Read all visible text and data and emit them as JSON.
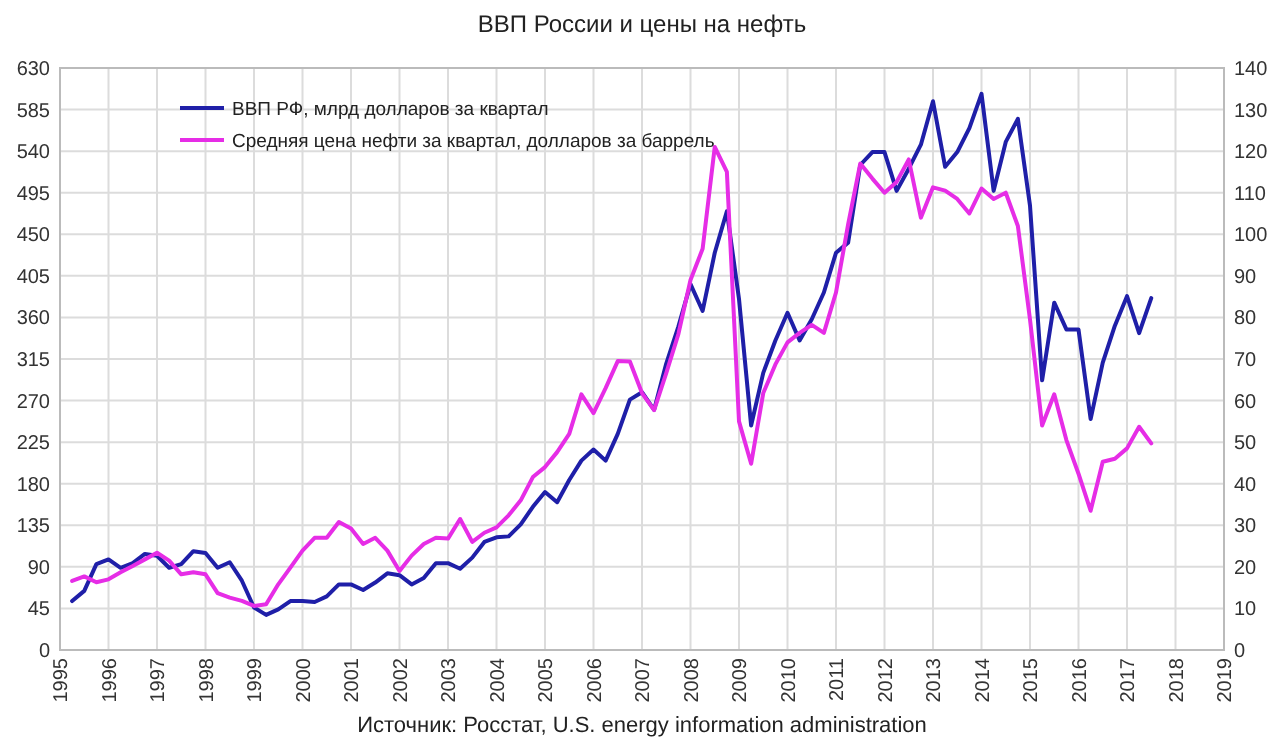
{
  "chart_data": {
    "type": "line",
    "title": "ВВП России и цены на нефть",
    "x": [
      1995.25,
      1995.5,
      1995.75,
      1996,
      1996.25,
      1996.5,
      1996.75,
      1997,
      1997.25,
      1997.5,
      1997.75,
      1998,
      1998.25,
      1998.5,
      1998.75,
      1999,
      1999.25,
      1999.5,
      1999.75,
      2000,
      2000.25,
      2000.5,
      2000.75,
      2001,
      2001.25,
      2001.5,
      2001.75,
      2002,
      2002.25,
      2002.5,
      2002.75,
      2003,
      2003.25,
      2003.5,
      2003.75,
      2004,
      2004.25,
      2004.5,
      2004.75,
      2005,
      2005.25,
      2005.5,
      2005.75,
      2006,
      2006.25,
      2006.5,
      2006.75,
      2007,
      2007.25,
      2007.5,
      2007.75,
      2008,
      2008.25,
      2008.5,
      2008.75,
      2009,
      2009.25,
      2009.5,
      2009.75,
      2010,
      2010.25,
      2010.5,
      2010.75,
      2011,
      2011.25,
      2011.5,
      2011.75,
      2012,
      2012.25,
      2012.5,
      2012.75,
      2013,
      2013.25,
      2013.5,
      2013.75,
      2014,
      2014.25,
      2014.5,
      2014.75,
      2015,
      2015.25,
      2015.5,
      2015.75,
      2016,
      2016.25,
      2016.5,
      2016.75,
      2017,
      2017.25,
      2017.5
    ],
    "series": [
      {
        "name": "ВВП РФ,  млрд долларов за квартал",
        "color": "#1f1fa8",
        "axis": "y",
        "values": [
          53,
          64,
          93,
          98,
          89,
          94,
          104,
          102,
          89,
          93,
          107,
          105,
          89,
          95,
          75,
          46,
          38,
          44,
          53,
          53,
          52,
          58,
          71,
          71,
          65,
          73,
          83,
          81,
          71,
          78,
          94,
          94,
          88,
          100,
          117,
          122,
          123,
          136,
          155,
          171,
          160,
          184,
          205,
          217,
          205,
          234,
          271,
          279,
          260,
          310,
          350,
          396,
          367,
          430,
          475,
          380,
          243,
          300,
          335,
          365,
          335,
          358,
          387,
          430,
          441,
          525,
          539,
          539,
          497,
          521,
          547,
          594,
          523,
          539,
          565,
          602,
          497,
          550,
          575,
          481,
          292,
          376,
          347,
          347,
          250,
          311,
          351,
          383,
          343,
          381
        ]
      },
      {
        "name": "Средняя цена нефти за квартал, долларов за баррель",
        "color": "#e62de6",
        "axis": "y2",
        "values": [
          16.6,
          17.7,
          16.3,
          17,
          18.7,
          20.2,
          21.8,
          23.4,
          21.5,
          18.2,
          18.7,
          18.2,
          13.7,
          12.6,
          11.8,
          10.6,
          11,
          15.8,
          19.8,
          23.9,
          27,
          27,
          30.8,
          29.2,
          25.5,
          27,
          23.9,
          19,
          22.7,
          25.5,
          27,
          26.8,
          31.5,
          26,
          28.2,
          29.5,
          32.4,
          36,
          41.6,
          44,
          47.6,
          52,
          61.5,
          57,
          63,
          69.5,
          69.4,
          61.8,
          57.7,
          66.6,
          76,
          89,
          96.5,
          121,
          115,
          55,
          44.8,
          61.8,
          68.7,
          74,
          76.3,
          78.2,
          76.3,
          86,
          102.4,
          117,
          113.4,
          110,
          112.6,
          118,
          104,
          111.3,
          110.5,
          108.5,
          105,
          111,
          108.5,
          110,
          102,
          79.5,
          54,
          61.5,
          50.5,
          42.4,
          33.5,
          45.3,
          46,
          48.5,
          53.7,
          49.7
        ]
      }
    ],
    "xlim": [
      1995,
      2019
    ],
    "xticks": [
      1995,
      1996,
      1997,
      1998,
      1999,
      2000,
      2001,
      2002,
      2003,
      2004,
      2005,
      2006,
      2007,
      2008,
      2009,
      2010,
      2011,
      2012,
      2013,
      2014,
      2015,
      2016,
      2017,
      2018,
      2019
    ],
    "ylim": [
      0,
      630
    ],
    "yticks": [
      0,
      45,
      90,
      135,
      180,
      225,
      270,
      315,
      360,
      405,
      450,
      495,
      540,
      585,
      630
    ],
    "y2lim": [
      0,
      140
    ],
    "y2ticks": [
      0,
      10,
      20,
      30,
      40,
      50,
      60,
      70,
      80,
      90,
      100,
      110,
      120,
      130,
      140
    ],
    "grid": true,
    "legend": "top left",
    "annotations": [
      "Источник: Росстат, U.S. energy information administration"
    ]
  }
}
